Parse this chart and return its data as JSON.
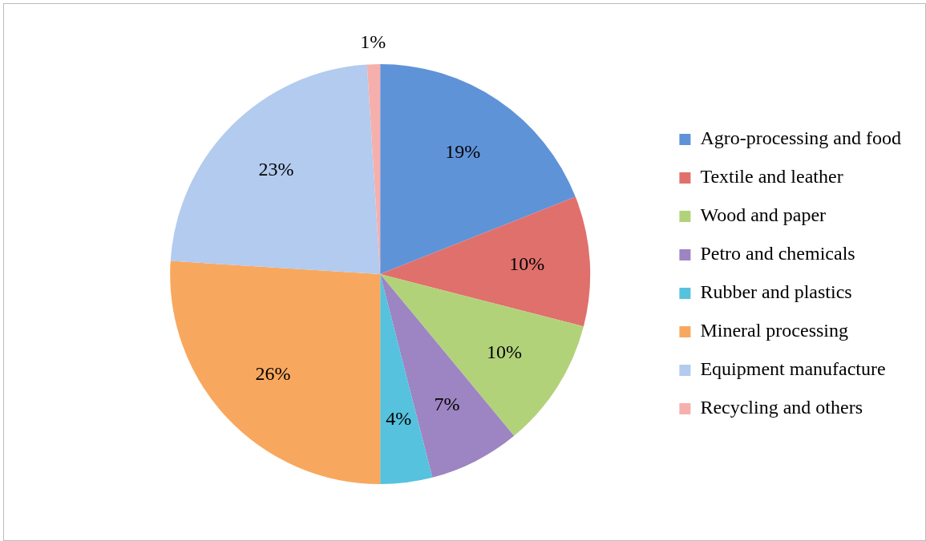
{
  "chart_data": {
    "type": "pie",
    "categories": [
      "Agro-processing and food",
      "Textile and leather",
      "Wood and paper",
      "Petro and chemicals",
      "Rubber and plastics",
      "Mineral processing",
      "Equipment manufacture",
      "Recycling and others"
    ],
    "values": [
      19,
      10,
      10,
      7,
      4,
      26,
      23,
      1
    ],
    "value_labels": [
      "19%",
      "10%",
      "10%",
      "7%",
      "4%",
      "26%",
      "23%",
      "1%"
    ],
    "colors": [
      "#5f93d8",
      "#e0706c",
      "#b2d27a",
      "#9d84c2",
      "#56c2dd",
      "#f8a85e",
      "#b2cbef",
      "#f5b0ae"
    ],
    "legend": "right"
  }
}
